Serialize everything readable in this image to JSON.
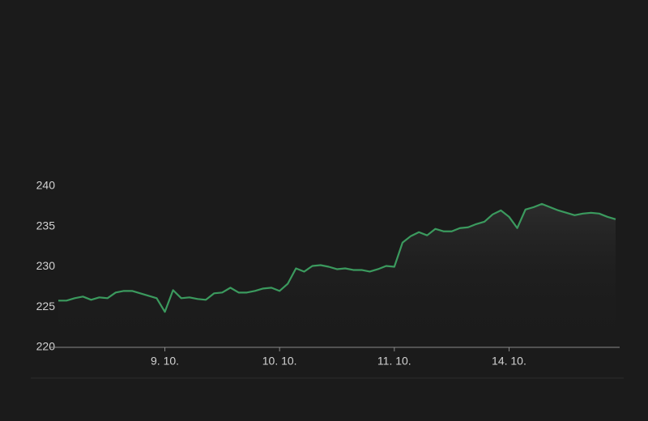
{
  "chart_data": {
    "type": "line",
    "categories": [
      null,
      null,
      null,
      null,
      null,
      null,
      null,
      null,
      null,
      null,
      null,
      null,
      null,
      "9. 10.",
      null,
      null,
      null,
      null,
      null,
      null,
      null,
      null,
      null,
      null,
      null,
      null,
      null,
      "10. 10.",
      null,
      null,
      null,
      null,
      null,
      null,
      null,
      null,
      null,
      null,
      null,
      null,
      null,
      "11. 10.",
      null,
      null,
      null,
      null,
      null,
      null,
      null,
      null,
      null,
      null,
      null,
      null,
      null,
      "14. 10.",
      null,
      null,
      null,
      null,
      null,
      null,
      null,
      null,
      null,
      null,
      null,
      null,
      null
    ],
    "series": [
      {
        "color": "#3b9a5e",
        "values": [
          225.8,
          225.8,
          226.1,
          226.3,
          225.9,
          226.2,
          226.1,
          226.8,
          227.0,
          227.0,
          226.7,
          226.4,
          226.1,
          224.4,
          227.1,
          226.1,
          226.2,
          226.0,
          225.9,
          226.7,
          226.8,
          227.4,
          226.8,
          226.8,
          227.0,
          227.3,
          227.4,
          227.0,
          227.9,
          229.8,
          229.4,
          230.1,
          230.2,
          230.0,
          229.7,
          229.8,
          229.6,
          229.6,
          229.4,
          229.7,
          230.1,
          230.0,
          233.0,
          233.8,
          234.3,
          233.9,
          234.7,
          234.4,
          234.4,
          234.8,
          234.9,
          235.3,
          235.6,
          236.5,
          237.0,
          236.2,
          234.8,
          237.1,
          237.4,
          237.8,
          237.4,
          237.0,
          236.7,
          236.4,
          236.6,
          236.7,
          236.6,
          236.2,
          235.9
        ]
      }
    ],
    "ylim": [
      220,
      240
    ],
    "yticks": [
      220,
      225,
      230,
      235,
      240
    ]
  }
}
